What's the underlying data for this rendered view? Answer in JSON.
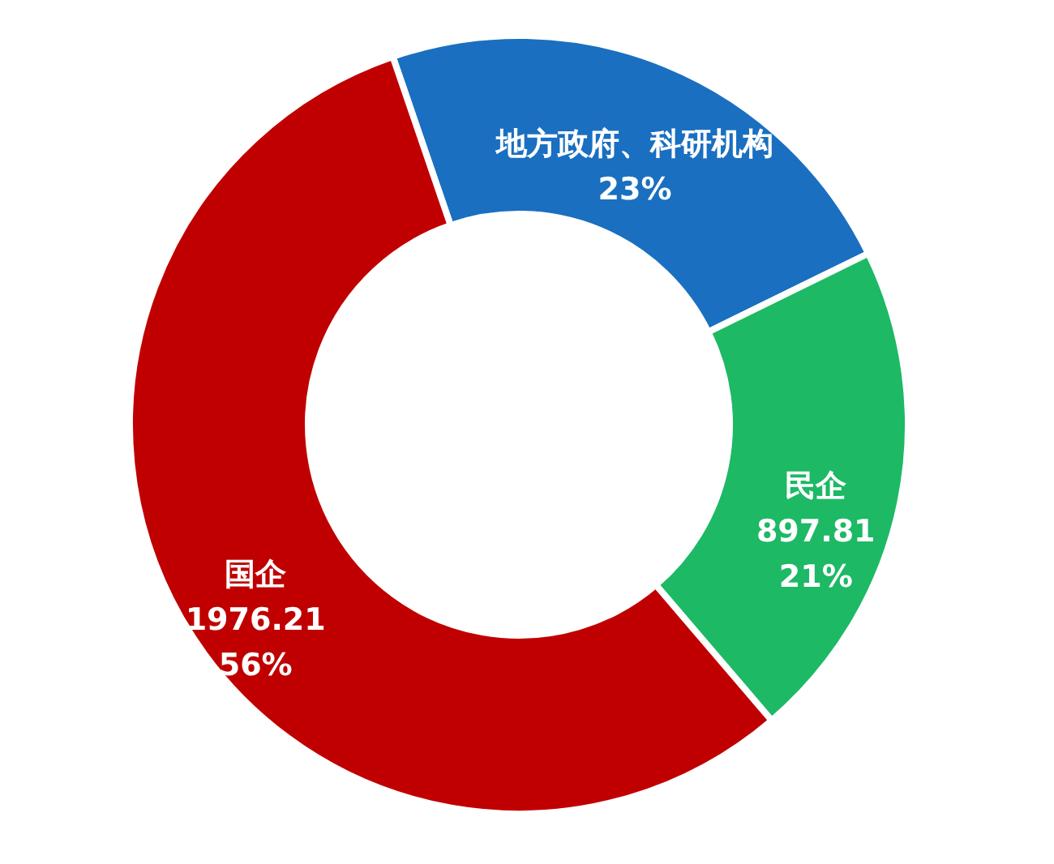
{
  "chart_data": {
    "type": "donut",
    "categories": [
      "地方政府、科研机构",
      "民企",
      "国企"
    ],
    "values": [
      23,
      21,
      56
    ],
    "colors": [
      "#1a6fc0",
      "#1db965",
      "#c00000"
    ],
    "value_labels": [
      "23%",
      "897.81\n21%",
      "1976.21\n56%"
    ]
  }
}
